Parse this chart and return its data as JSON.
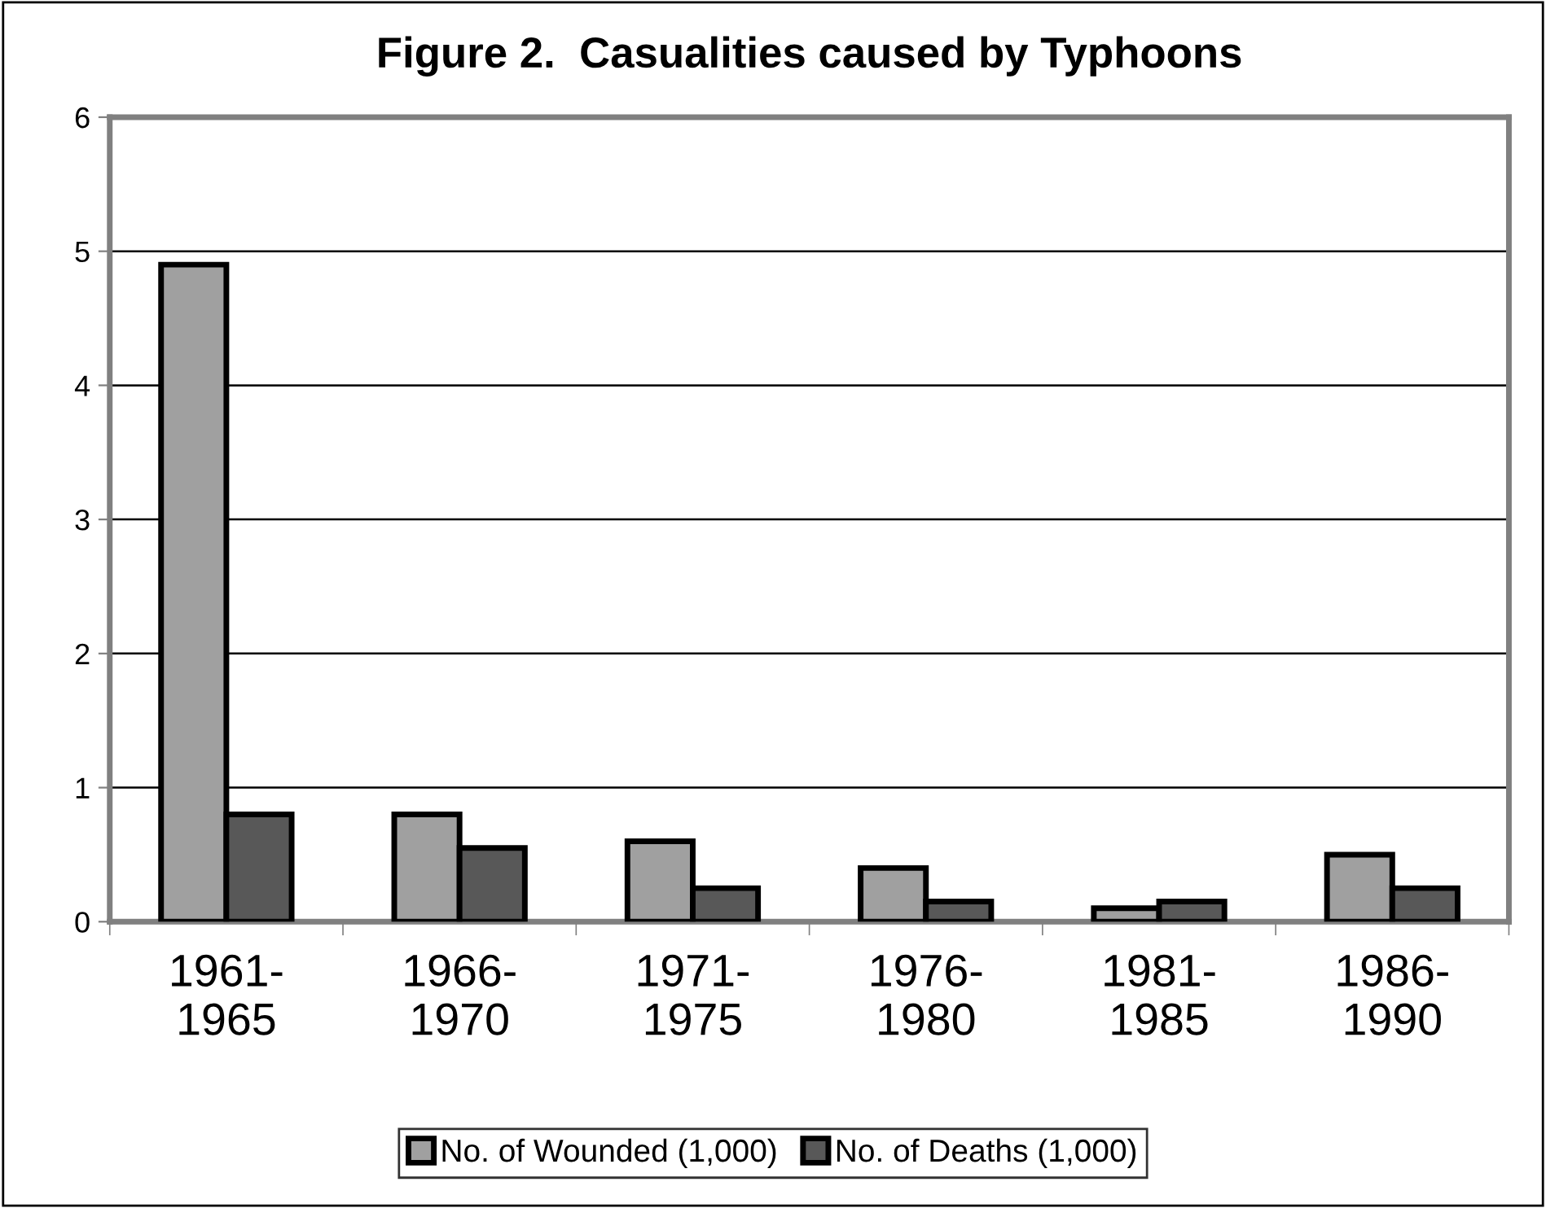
{
  "chart_data": {
    "type": "bar",
    "title": "Figure 2.  Casualities caused by Typhoons",
    "categories": [
      "1961-\n1965",
      "1966-\n1970",
      "1971-\n1975",
      "1976-\n1980",
      "1981-\n1985",
      "1986-\n1990"
    ],
    "series": [
      {
        "name": "No. of Wounded (1,000)",
        "color": "#a0a0a0",
        "values": [
          4.9,
          0.8,
          0.6,
          0.4,
          0.1,
          0.5
        ]
      },
      {
        "name": "No. of Deaths (1,000)",
        "color": "#585858",
        "values": [
          0.8,
          0.55,
          0.25,
          0.15,
          0.15,
          0.25
        ]
      }
    ],
    "ylim": [
      0,
      6
    ],
    "yticks": [
      0,
      1,
      2,
      3,
      4,
      5,
      6
    ],
    "grid": "y",
    "legend": "bottom"
  }
}
